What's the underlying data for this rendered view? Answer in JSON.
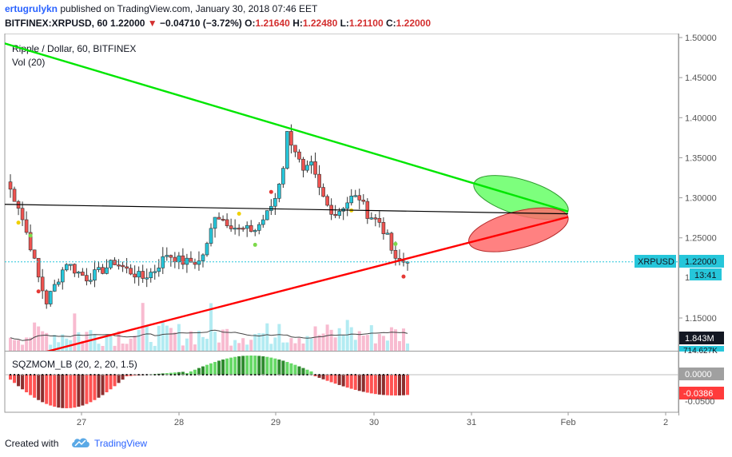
{
  "header": {
    "author": "ertugrulykn",
    "published_text": "published on TradingView.com, January 30, 2018 07:46 EET",
    "symbol_line": "BITFINEX:XRPUSD, 60",
    "last": "1.22000",
    "change": "−0.04710 (−3.72%)",
    "open_label": "O:",
    "open": "1.21640",
    "high_label": "H:",
    "high": "1.22480",
    "low_label": "L:",
    "low": "1.21100",
    "close_label": "C:",
    "close": "1.22000"
  },
  "legend": {
    "title": "Ripple / Dollar, 60, BITFINEX",
    "volume": "Vol (20)",
    "indicator": "SQZMOM_LB (20, 2, 20, 1.5)"
  },
  "price_axis": {
    "ticks": [
      "1.50000",
      "1.45000",
      "1.40000",
      "1.35000",
      "1.30000",
      "1.25000",
      "1.15000"
    ],
    "tick_values": [
      1.5,
      1.45,
      1.4,
      1.35,
      1.3,
      1.25,
      1.15
    ],
    "partial_tick": "1.",
    "last_price_label": "1.22000",
    "countdown": "13:41",
    "symbol_tag": "XRPUSD",
    "volume_label": "1.843M",
    "volume_ma_label": "714.627K"
  },
  "indicator_axis": {
    "zero_label": "0.0000",
    "value_label": "-0.0386",
    "partial_label": "-0.0500"
  },
  "time_axis": {
    "labels": [
      "27",
      "28",
      "29",
      "30",
      "31",
      "Feb",
      "2"
    ]
  },
  "colors": {
    "up": "#26c6da",
    "down": "#ef5350",
    "trend_upper": "#00e600",
    "trend_lower": "#ff0000",
    "horizontal": "#000000",
    "green_ellipse": "#66ff66",
    "red_ellipse": "#ff6666",
    "price_line": "#26c6da"
  },
  "footer": {
    "created_with": "Created with",
    "brand": "TradingView"
  },
  "chart_data": {
    "type": "candlestick",
    "title": "Ripple / Dollar, 60, BITFINEX",
    "xlabel": "",
    "ylabel": "",
    "ylim": [
      1.1,
      1.5
    ],
    "x_ticks": [
      "27",
      "28",
      "29",
      "30",
      "31",
      "Feb",
      "2"
    ],
    "price_path": [
      [
        0,
        1.32
      ],
      [
        3,
        1.29
      ],
      [
        6,
        1.24
      ],
      [
        8,
        1.2
      ],
      [
        10,
        1.17
      ],
      [
        12,
        1.19
      ],
      [
        15,
        1.22
      ],
      [
        17,
        1.21
      ],
      [
        20,
        1.2
      ],
      [
        24,
        1.21
      ],
      [
        27,
        1.22
      ],
      [
        30,
        1.21
      ],
      [
        34,
        1.2
      ],
      [
        37,
        1.21
      ],
      [
        40,
        1.23
      ],
      [
        44,
        1.22
      ],
      [
        48,
        1.22
      ],
      [
        50,
        1.24
      ],
      [
        52,
        1.28
      ],
      [
        55,
        1.27
      ],
      [
        58,
        1.26
      ],
      [
        62,
        1.26
      ],
      [
        65,
        1.28
      ],
      [
        67,
        1.3
      ],
      [
        69,
        1.34
      ],
      [
        70,
        1.38
      ],
      [
        72,
        1.36
      ],
      [
        74,
        1.33
      ],
      [
        76,
        1.34
      ],
      [
        78,
        1.31
      ],
      [
        80,
        1.29
      ],
      [
        82,
        1.28
      ],
      [
        84,
        1.29
      ],
      [
        86,
        1.3
      ],
      [
        88,
        1.3
      ],
      [
        90,
        1.28
      ],
      [
        93,
        1.27
      ],
      [
        95,
        1.25
      ],
      [
        97,
        1.22
      ],
      [
        100,
        1.22
      ]
    ],
    "trendlines": [
      {
        "color": "green",
        "from": [
          -2,
          1.495
        ],
        "to": [
          140,
          1.283
        ]
      },
      {
        "color": "red",
        "from": [
          10,
          1.108
        ],
        "to": [
          140,
          1.276
        ]
      },
      {
        "color": "black",
        "from": [
          -2,
          1.292
        ],
        "to": [
          140,
          1.28
        ]
      }
    ],
    "last_price": 1.22,
    "volume_last": "1.843M",
    "volume_ma": "714.627K",
    "indicator": {
      "name": "SQZMOM_LB",
      "params": "(20, 2, 20, 1.5)",
      "last": -0.0386,
      "zero": 0.0
    }
  }
}
